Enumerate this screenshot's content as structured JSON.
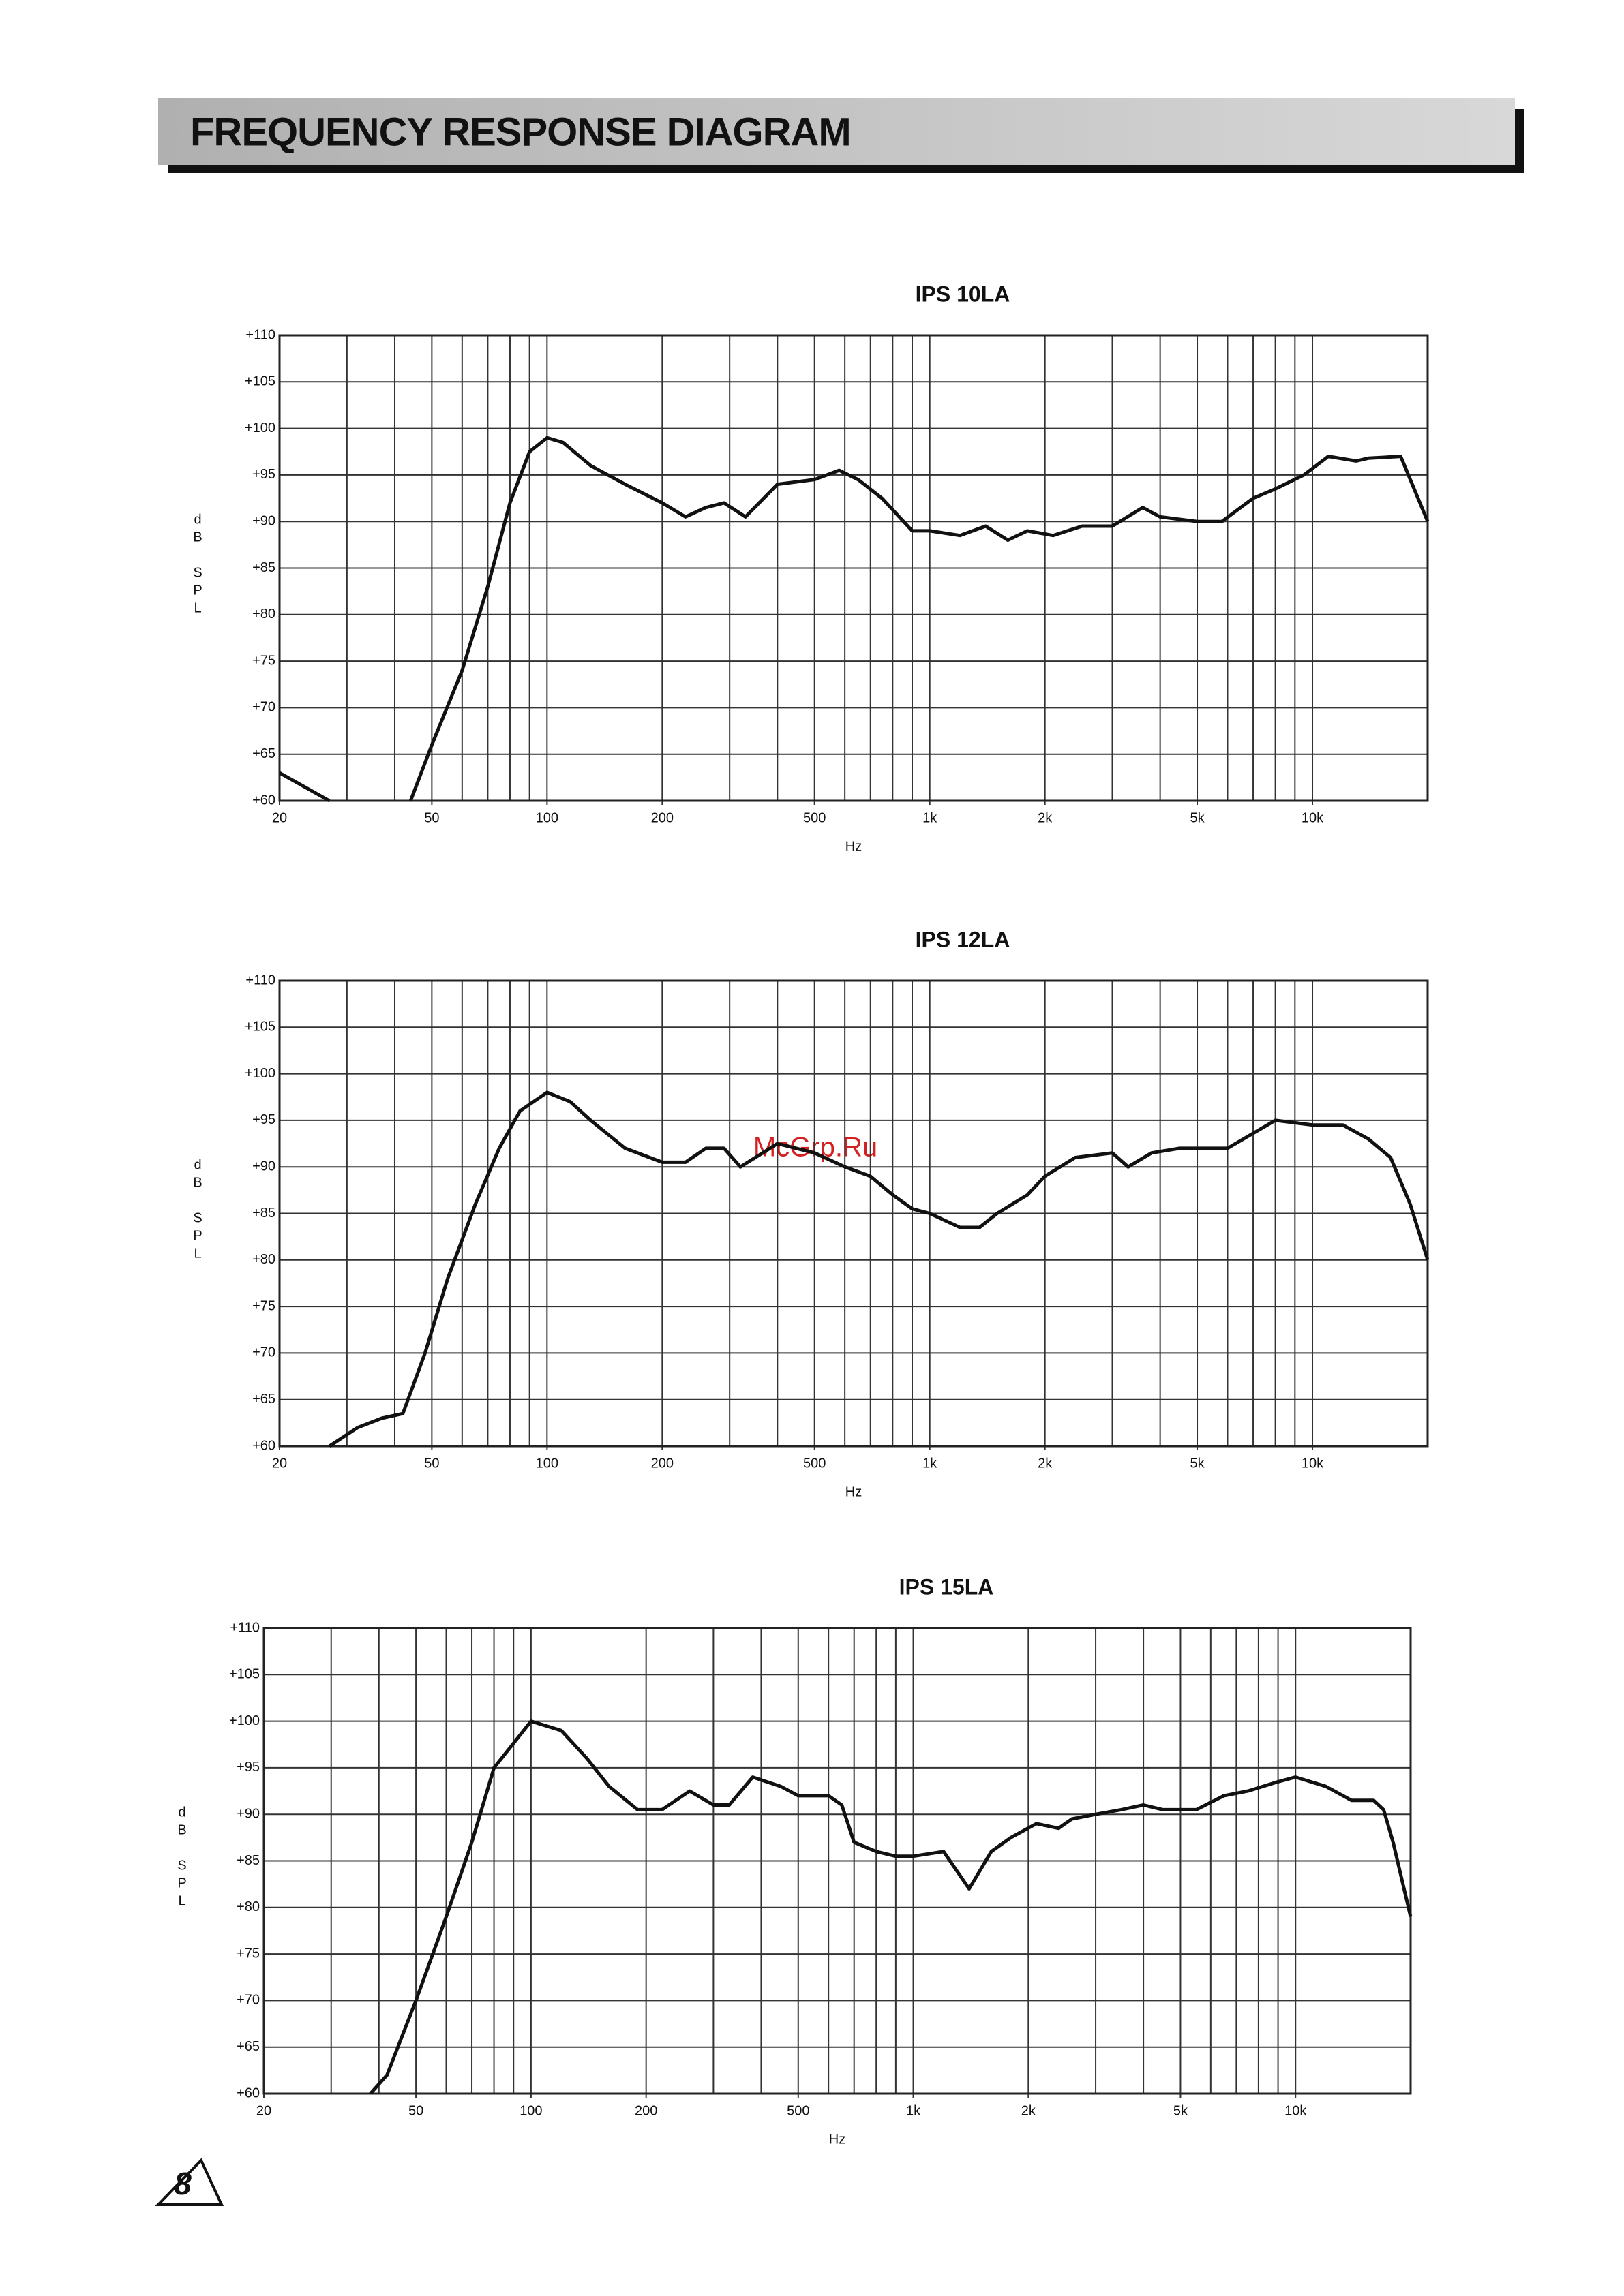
{
  "header": {
    "title": "FREQUENCY RESPONSE DIAGRAM"
  },
  "page_number": "8",
  "watermark": "McGrp.Ru",
  "chart_data": [
    {
      "type": "line",
      "title": "IPS 10LA",
      "xlabel": "Hz",
      "ylabel": "dB SPL",
      "xscale": "log",
      "xlim": [
        20,
        20000
      ],
      "ylim": [
        60,
        110
      ],
      "xticks": [
        20,
        50,
        100,
        200,
        500,
        {
          "value": 1000,
          "label": "1k"
        },
        {
          "value": 2000,
          "label": "2k"
        },
        {
          "value": 5000,
          "label": "5k"
        },
        {
          "value": 10000,
          "label": "10k"
        }
      ],
      "xgrid": [
        20,
        30,
        40,
        50,
        60,
        70,
        80,
        90,
        100,
        200,
        300,
        400,
        500,
        600,
        700,
        800,
        900,
        1000,
        2000,
        3000,
        4000,
        5000,
        6000,
        7000,
        8000,
        9000,
        10000,
        20000
      ],
      "yticks": [
        {
          "value": 60,
          "label": "+60"
        },
        {
          "value": 65,
          "label": "+65"
        },
        {
          "value": 70,
          "label": "+70"
        },
        {
          "value": 75,
          "label": "+75"
        },
        {
          "value": 80,
          "label": "+80"
        },
        {
          "value": 85,
          "label": "+85"
        },
        {
          "value": 90,
          "label": "+90"
        },
        {
          "value": 95,
          "label": "+95"
        },
        {
          "value": 100,
          "label": "+100"
        },
        {
          "value": 105,
          "label": "+105"
        },
        {
          "value": 110,
          "label": "+110"
        }
      ],
      "grid": true,
      "x": [
        20,
        27,
        35,
        44,
        50,
        60,
        70,
        80,
        90,
        100,
        110,
        130,
        160,
        200,
        230,
        260,
        290,
        330,
        400,
        500,
        580,
        650,
        750,
        900,
        1000,
        1200,
        1400,
        1600,
        1800,
        2100,
        2500,
        3000,
        3600,
        4000,
        5000,
        5800,
        7000,
        8000,
        9500,
        11000,
        13000,
        14000,
        17000,
        20000
      ],
      "series": [
        {
          "color": "#111111",
          "values": [
            63,
            60,
            null,
            60,
            66,
            74,
            83,
            92,
            97.5,
            99,
            98.5,
            96,
            94,
            92,
            90.5,
            91.5,
            92,
            90.5,
            94,
            94.5,
            95.5,
            94.5,
            92.5,
            89,
            89,
            88.5,
            89.5,
            88,
            89,
            88.5,
            89.5,
            89.5,
            91.5,
            90.5,
            90,
            90,
            92.5,
            93.5,
            95,
            97,
            96.5,
            96.8,
            97,
            90
          ]
        }
      ]
    },
    {
      "type": "line",
      "title": "IPS 12LA",
      "xlabel": "Hz",
      "ylabel": "dB SPL",
      "xscale": "log",
      "xlim": [
        20,
        20000
      ],
      "ylim": [
        60,
        110
      ],
      "xticks": [
        20,
        50,
        100,
        200,
        500,
        {
          "value": 1000,
          "label": "1k"
        },
        {
          "value": 2000,
          "label": "2k"
        },
        {
          "value": 5000,
          "label": "5k"
        },
        {
          "value": 10000,
          "label": "10k"
        }
      ],
      "xgrid": [
        20,
        30,
        40,
        50,
        60,
        70,
        80,
        90,
        100,
        200,
        300,
        400,
        500,
        600,
        700,
        800,
        900,
        1000,
        2000,
        3000,
        4000,
        5000,
        6000,
        7000,
        8000,
        9000,
        10000,
        20000
      ],
      "yticks": [
        {
          "value": 60,
          "label": "+60"
        },
        {
          "value": 65,
          "label": "+65"
        },
        {
          "value": 70,
          "label": "+70"
        },
        {
          "value": 75,
          "label": "+75"
        },
        {
          "value": 80,
          "label": "+80"
        },
        {
          "value": 85,
          "label": "+85"
        },
        {
          "value": 90,
          "label": "+90"
        },
        {
          "value": 95,
          "label": "+95"
        },
        {
          "value": 100,
          "label": "+100"
        },
        {
          "value": 105,
          "label": "+105"
        },
        {
          "value": 110,
          "label": "+110"
        }
      ],
      "grid": true,
      "x": [
        27,
        32,
        37,
        42,
        48,
        55,
        65,
        75,
        85,
        100,
        115,
        130,
        160,
        200,
        230,
        260,
        290,
        320,
        350,
        400,
        500,
        600,
        700,
        800,
        900,
        1000,
        1200,
        1350,
        1500,
        1800,
        2000,
        2400,
        3000,
        3300,
        3800,
        4500,
        6000,
        8000,
        10000,
        12000,
        14000,
        16000,
        18000,
        20000
      ],
      "series": [
        {
          "color": "#111111",
          "values": [
            60,
            62,
            63,
            63.5,
            70,
            78,
            86,
            92,
            96,
            98,
            97,
            95,
            92,
            90.5,
            90.5,
            92,
            92,
            90,
            91,
            92.5,
            91.5,
            90,
            89,
            87,
            85.5,
            85,
            83.5,
            83.5,
            85,
            87,
            89,
            91,
            91.5,
            90,
            91.5,
            92,
            92,
            95,
            94.5,
            94.5,
            93,
            91,
            86,
            80
          ]
        }
      ]
    },
    {
      "type": "line",
      "title": "IPS 15LA",
      "xlabel": "Hz",
      "ylabel": "dB SPL",
      "xscale": "log",
      "xlim": [
        20,
        20000
      ],
      "ylim": [
        60,
        110
      ],
      "xticks": [
        20,
        50,
        100,
        200,
        500,
        {
          "value": 1000,
          "label": "1k"
        },
        {
          "value": 2000,
          "label": "2k"
        },
        {
          "value": 5000,
          "label": "5k"
        },
        {
          "value": 10000,
          "label": "10k"
        }
      ],
      "xgrid": [
        20,
        30,
        40,
        50,
        60,
        70,
        80,
        90,
        100,
        200,
        300,
        400,
        500,
        600,
        700,
        800,
        900,
        1000,
        2000,
        3000,
        4000,
        5000,
        6000,
        7000,
        8000,
        9000,
        10000,
        20000
      ],
      "yticks": [
        {
          "value": 60,
          "label": "+60"
        },
        {
          "value": 65,
          "label": "+65"
        },
        {
          "value": 70,
          "label": "+70"
        },
        {
          "value": 75,
          "label": "+75"
        },
        {
          "value": 80,
          "label": "+80"
        },
        {
          "value": 85,
          "label": "+85"
        },
        {
          "value": 90,
          "label": "+90"
        },
        {
          "value": 95,
          "label": "+95"
        },
        {
          "value": 100,
          "label": "+100"
        },
        {
          "value": 105,
          "label": "+105"
        },
        {
          "value": 110,
          "label": "+110"
        }
      ],
      "grid": true,
      "x": [
        38,
        42,
        50,
        60,
        70,
        80,
        100,
        120,
        140,
        160,
        190,
        220,
        260,
        300,
        330,
        380,
        450,
        500,
        600,
        650,
        700,
        800,
        900,
        1000,
        1200,
        1400,
        1600,
        1800,
        2100,
        2400,
        2600,
        3000,
        3500,
        4000,
        4500,
        5500,
        6500,
        7500,
        9000,
        10000,
        12000,
        14000,
        16000,
        17000,
        18000,
        20000
      ],
      "series": [
        {
          "color": "#111111",
          "values": [
            60,
            62,
            70,
            79,
            87,
            95,
            100,
            99,
            96,
            93,
            90.5,
            90.5,
            92.5,
            91,
            91,
            94,
            93,
            92,
            92,
            91,
            87,
            86,
            85.5,
            85.5,
            86,
            82,
            86,
            87.5,
            89,
            88.5,
            89.5,
            90,
            90.5,
            91,
            90.5,
            90.5,
            92,
            92.5,
            93.5,
            94,
            93,
            91.5,
            91.5,
            90.5,
            87,
            79
          ]
        }
      ]
    }
  ]
}
